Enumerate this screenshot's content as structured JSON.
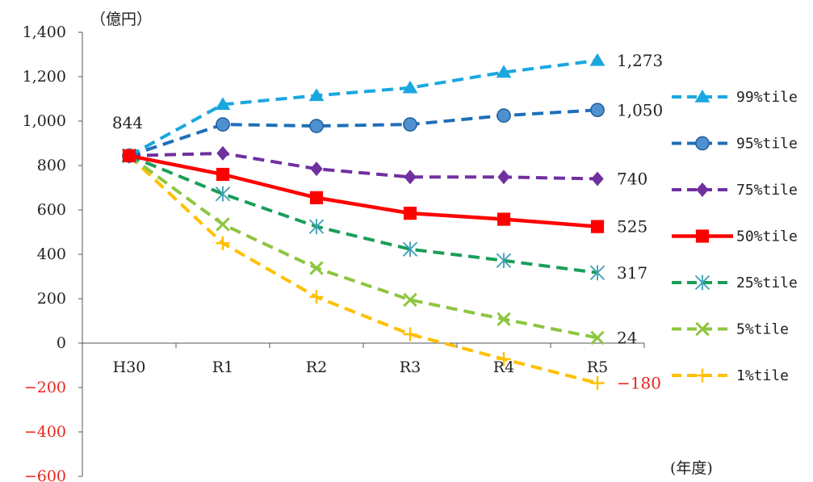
{
  "chart_data": {
    "type": "line",
    "y_unit": "（億円）",
    "x_unit": "(年度)",
    "categories": [
      "H30",
      "R1",
      "R2",
      "R3",
      "R4",
      "R5"
    ],
    "ylim": [
      -600,
      1400
    ],
    "yticks": [
      "1,400",
      "1,200",
      "1,000",
      "800",
      "600",
      "400",
      "200",
      "0",
      "−200",
      "−400",
      "−600"
    ],
    "ytick_values": [
      1400,
      1200,
      1000,
      800,
      600,
      400,
      200,
      0,
      -200,
      -400,
      -600
    ],
    "legend_position": "right",
    "start_label": "844",
    "series": [
      {
        "name": "99%tile",
        "values": [
          844,
          1075,
          1115,
          1150,
          1220,
          1273
        ],
        "end_label": "1,273",
        "color": "#1aa7e0",
        "marker": "triangle",
        "dash": true,
        "negative": false
      },
      {
        "name": "95%tile",
        "values": [
          844,
          985,
          978,
          985,
          1025,
          1050
        ],
        "end_label": "1,050",
        "color": "#1f6fb8",
        "marker": "circle",
        "dash": true,
        "negative": false
      },
      {
        "name": "75%tile",
        "values": [
          844,
          855,
          785,
          748,
          748,
          740
        ],
        "end_label": "740",
        "color": "#7030a0",
        "marker": "diamond",
        "dash": true,
        "negative": false
      },
      {
        "name": "50%tile",
        "values": [
          844,
          760,
          655,
          585,
          558,
          525
        ],
        "end_label": "525",
        "color": "#ff0000",
        "marker": "square",
        "dash": false,
        "negative": false
      },
      {
        "name": "25%tile",
        "values": [
          844,
          672,
          525,
          423,
          372,
          317
        ],
        "end_label": "317",
        "color": "#1a9e5a",
        "marker": "asterisk",
        "dash": true,
        "negative": false
      },
      {
        "name": "5%tile",
        "values": [
          844,
          535,
          338,
          195,
          108,
          24
        ],
        "end_label": "24",
        "color": "#8dc63f",
        "marker": "x",
        "dash": true,
        "negative": false
      },
      {
        "name": "1%tile",
        "values": [
          844,
          450,
          208,
          40,
          -72,
          -180
        ],
        "end_label": "−180",
        "color": "#ffc000",
        "marker": "plus",
        "dash": true,
        "negative": true
      }
    ]
  }
}
